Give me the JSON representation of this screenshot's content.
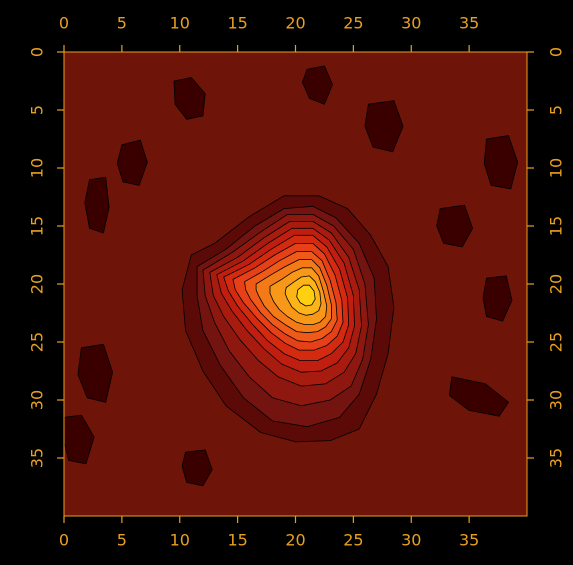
{
  "chart_data": {
    "type": "heatmap",
    "title": "",
    "xlabel": "",
    "ylabel": "",
    "xlim": [
      0,
      40
    ],
    "ylim": [
      0,
      40
    ],
    "y_inverted": true,
    "x_ticks": [
      0,
      5,
      10,
      15,
      20,
      25,
      30,
      35
    ],
    "y_ticks": [
      0,
      5,
      10,
      15,
      20,
      25,
      30,
      35
    ],
    "tick_labels": {
      "x": [
        "0",
        "5",
        "10",
        "15",
        "20",
        "25",
        "30",
        "35"
      ],
      "y": [
        "0",
        "5",
        "10",
        "15",
        "20",
        "25",
        "30",
        "35"
      ]
    },
    "axes_on": [
      "bottom",
      "top",
      "left",
      "right"
    ],
    "grid": false,
    "legend": "none",
    "colormap": [
      "#3a0000",
      "#5c0a08",
      "#741410",
      "#8e1810",
      "#a81c10",
      "#c01e10",
      "#d42a10",
      "#e64018",
      "#f05a18",
      "#f47a18",
      "#f89818",
      "#fcb418",
      "#ffd010"
    ],
    "peak": {
      "x": 21,
      "y": 20
    },
    "colors": {
      "background": "#000000",
      "plot_background": "#6e1408",
      "axis": "#e8a020",
      "contour_line": "#000000"
    },
    "contours": [
      {
        "level": 1,
        "points": [
          [
            11,
            17.5
          ],
          [
            13,
            16.5
          ],
          [
            16,
            14.2
          ],
          [
            19,
            12.4
          ],
          [
            22,
            12.4
          ],
          [
            24.5,
            13.5
          ],
          [
            26.5,
            15.8
          ],
          [
            28,
            18.5
          ],
          [
            28.5,
            22
          ],
          [
            28,
            26
          ],
          [
            27,
            29.5
          ],
          [
            25.5,
            32.5
          ],
          [
            23,
            33.5
          ],
          [
            20,
            33.6
          ],
          [
            17,
            32.8
          ],
          [
            14,
            30.5
          ],
          [
            12,
            27.5
          ],
          [
            10.5,
            24
          ],
          [
            10.2,
            20.5
          ]
        ]
      },
      {
        "level": 2,
        "points": [
          [
            11.5,
            18.5
          ],
          [
            14,
            17
          ],
          [
            16.5,
            15
          ],
          [
            19,
            13.5
          ],
          [
            21.5,
            13.3
          ],
          [
            23.5,
            14.3
          ],
          [
            25.5,
            16.5
          ],
          [
            26.8,
            19.5
          ],
          [
            27,
            23
          ],
          [
            26.5,
            26.5
          ],
          [
            25.5,
            29.5
          ],
          [
            23.8,
            31.5
          ],
          [
            21,
            32.3
          ],
          [
            18,
            31.8
          ],
          [
            15.5,
            29.8
          ],
          [
            13.5,
            27
          ],
          [
            12,
            24
          ],
          [
            11.5,
            21
          ]
        ]
      },
      {
        "level": 3,
        "points": [
          [
            12,
            18.8
          ],
          [
            14.5,
            17.3
          ],
          [
            17,
            15.5
          ],
          [
            19.3,
            14
          ],
          [
            21.5,
            14
          ],
          [
            23.3,
            15
          ],
          [
            25,
            17
          ],
          [
            26,
            20
          ],
          [
            26.3,
            23.5
          ],
          [
            25.8,
            26.5
          ],
          [
            24.8,
            28.8
          ],
          [
            23,
            30
          ],
          [
            20.5,
            30.5
          ],
          [
            18,
            29.8
          ],
          [
            16,
            28
          ],
          [
            14.3,
            25.8
          ],
          [
            13,
            23.3
          ],
          [
            12.2,
            21
          ]
        ]
      },
      {
        "level": 4,
        "points": [
          [
            12.6,
            19
          ],
          [
            15,
            17.7
          ],
          [
            17.3,
            16
          ],
          [
            19.5,
            14.6
          ],
          [
            21.5,
            14.6
          ],
          [
            23.1,
            15.6
          ],
          [
            24.6,
            17.7
          ],
          [
            25.5,
            20.5
          ],
          [
            25.7,
            23.6
          ],
          [
            25.2,
            26
          ],
          [
            24.2,
            27.6
          ],
          [
            22.6,
            28.6
          ],
          [
            20.5,
            28.8
          ],
          [
            18.5,
            28
          ],
          [
            16.8,
            26.6
          ],
          [
            15.2,
            24.8
          ],
          [
            13.8,
            22.8
          ],
          [
            12.9,
            21
          ]
        ]
      },
      {
        "level": 5,
        "points": [
          [
            13.2,
            19.2
          ],
          [
            15.5,
            18
          ],
          [
            17.6,
            16.5
          ],
          [
            19.7,
            15.2
          ],
          [
            21.5,
            15.2
          ],
          [
            22.9,
            16.2
          ],
          [
            24.2,
            18.2
          ],
          [
            25,
            21
          ],
          [
            25.1,
            23.6
          ],
          [
            24.6,
            25.5
          ],
          [
            23.6,
            26.8
          ],
          [
            22.2,
            27.5
          ],
          [
            20.5,
            27.6
          ],
          [
            18.8,
            26.9
          ],
          [
            17.3,
            25.6
          ],
          [
            15.8,
            24
          ],
          [
            14.5,
            22.3
          ],
          [
            13.6,
            20.8
          ]
        ]
      },
      {
        "level": 6,
        "points": [
          [
            13.8,
            19.4
          ],
          [
            16,
            18.3
          ],
          [
            17.9,
            17
          ],
          [
            19.9,
            15.8
          ],
          [
            21.5,
            15.8
          ],
          [
            22.7,
            16.8
          ],
          [
            23.8,
            18.7
          ],
          [
            24.5,
            21.2
          ],
          [
            24.6,
            23.5
          ],
          [
            24.1,
            25
          ],
          [
            23.1,
            26
          ],
          [
            21.9,
            26.6
          ],
          [
            20.4,
            26.6
          ],
          [
            19,
            26
          ],
          [
            17.6,
            24.9
          ],
          [
            16.3,
            23.5
          ],
          [
            15,
            21.9
          ],
          [
            14.2,
            20.6
          ]
        ]
      },
      {
        "level": 7,
        "points": [
          [
            14.6,
            19.6
          ],
          [
            16.5,
            18.6
          ],
          [
            18.2,
            17.5
          ],
          [
            20,
            16.5
          ],
          [
            21.5,
            16.5
          ],
          [
            22.5,
            17.4
          ],
          [
            23.4,
            19.2
          ],
          [
            24,
            21.4
          ],
          [
            24.1,
            23.3
          ],
          [
            23.6,
            24.5
          ],
          [
            22.7,
            25.3
          ],
          [
            21.6,
            25.7
          ],
          [
            20.3,
            25.7
          ],
          [
            19.1,
            25.1
          ],
          [
            17.9,
            24.2
          ],
          [
            16.7,
            23
          ],
          [
            15.5,
            21.6
          ],
          [
            14.8,
            20.5
          ]
        ]
      },
      {
        "level": 8,
        "points": [
          [
            15.6,
            19.8
          ],
          [
            17.2,
            18.9
          ],
          [
            18.6,
            18
          ],
          [
            20.1,
            17.2
          ],
          [
            21.4,
            17.2
          ],
          [
            22.3,
            18
          ],
          [
            23,
            19.7
          ],
          [
            23.5,
            21.6
          ],
          [
            23.6,
            23.1
          ],
          [
            23.1,
            24.1
          ],
          [
            22.3,
            24.7
          ],
          [
            21.3,
            25
          ],
          [
            20.2,
            24.9
          ],
          [
            19.1,
            24.3
          ],
          [
            18,
            23.5
          ],
          [
            17,
            22.5
          ],
          [
            16.1,
            21.3
          ],
          [
            15.7,
            20.5
          ]
        ]
      },
      {
        "level": 9,
        "points": [
          [
            16.6,
            20
          ],
          [
            17.9,
            19.2
          ],
          [
            19.1,
            18.5
          ],
          [
            20.3,
            17.9
          ],
          [
            21.4,
            17.9
          ],
          [
            22.1,
            18.6
          ],
          [
            22.7,
            20.1
          ],
          [
            23.1,
            21.8
          ],
          [
            23.1,
            23
          ],
          [
            22.6,
            23.7
          ],
          [
            21.9,
            24.1
          ],
          [
            21,
            24.2
          ],
          [
            20.1,
            24.1
          ],
          [
            19.1,
            23.5
          ],
          [
            18.1,
            22.8
          ],
          [
            17.3,
            21.9
          ],
          [
            16.8,
            21
          ],
          [
            16.6,
            20.5
          ]
        ]
      },
      {
        "level": 10,
        "points": [
          [
            17.8,
            20.2
          ],
          [
            18.8,
            19.6
          ],
          [
            19.7,
            19
          ],
          [
            20.6,
            18.6
          ],
          [
            21.4,
            18.6
          ],
          [
            22,
            19.3
          ],
          [
            22.4,
            20.6
          ],
          [
            22.7,
            21.9
          ],
          [
            22.6,
            22.8
          ],
          [
            22.1,
            23.3
          ],
          [
            21.5,
            23.5
          ],
          [
            20.8,
            23.5
          ],
          [
            20.1,
            23.3
          ],
          [
            19.3,
            22.8
          ],
          [
            18.6,
            22.2
          ],
          [
            18.1,
            21.5
          ],
          [
            17.8,
            20.8
          ]
        ]
      },
      {
        "level": 11,
        "points": [
          [
            19.2,
            20.3
          ],
          [
            19.9,
            19.8
          ],
          [
            20.5,
            19.4
          ],
          [
            21.2,
            19.3
          ],
          [
            21.7,
            19.8
          ],
          [
            22.1,
            20.7
          ],
          [
            22.2,
            21.7
          ],
          [
            22,
            22.3
          ],
          [
            21.5,
            22.6
          ],
          [
            20.9,
            22.7
          ],
          [
            20.3,
            22.5
          ],
          [
            19.7,
            22
          ],
          [
            19.3,
            21.3
          ],
          [
            19.1,
            20.8
          ]
        ]
      },
      {
        "level": 12,
        "points": [
          [
            20.2,
            20.5
          ],
          [
            20.7,
            20.1
          ],
          [
            21.2,
            20.1
          ],
          [
            21.6,
            20.6
          ],
          [
            21.7,
            21.3
          ],
          [
            21.4,
            21.8
          ],
          [
            20.9,
            21.9
          ],
          [
            20.4,
            21.6
          ],
          [
            20.1,
            21.1
          ]
        ]
      }
    ],
    "dark_patches": [
      {
        "level": 0,
        "points": [
          [
            21,
            1.5
          ],
          [
            22.5,
            1.2
          ],
          [
            23.2,
            2.8
          ],
          [
            22.5,
            4.5
          ],
          [
            21.2,
            4
          ],
          [
            20.6,
            2.6
          ]
        ]
      },
      {
        "level": 0,
        "points": [
          [
            9.5,
            2.5
          ],
          [
            11,
            2.2
          ],
          [
            12.2,
            3.6
          ],
          [
            12,
            5.5
          ],
          [
            10.6,
            5.8
          ],
          [
            9.6,
            4.5
          ]
        ]
      },
      {
        "level": 0,
        "points": [
          [
            5,
            8
          ],
          [
            6.6,
            7.6
          ],
          [
            7.2,
            9.5
          ],
          [
            6.5,
            11.5
          ],
          [
            5.1,
            11.2
          ],
          [
            4.6,
            9.6
          ]
        ]
      },
      {
        "level": 0,
        "points": [
          [
            2.2,
            11
          ],
          [
            3.6,
            10.8
          ],
          [
            3.9,
            13.4
          ],
          [
            3.4,
            15.6
          ],
          [
            2.2,
            15.2
          ],
          [
            1.8,
            13
          ]
        ]
      },
      {
        "level": 0,
        "points": [
          [
            26.3,
            4.5
          ],
          [
            28.5,
            4.2
          ],
          [
            29.3,
            6.4
          ],
          [
            28.4,
            8.6
          ],
          [
            26.7,
            8.2
          ],
          [
            26,
            6.4
          ]
        ]
      },
      {
        "level": 0,
        "points": [
          [
            36.5,
            7.5
          ],
          [
            38.4,
            7.2
          ],
          [
            39.2,
            9.5
          ],
          [
            38.6,
            11.8
          ],
          [
            36.9,
            11.5
          ],
          [
            36.3,
            9.6
          ]
        ]
      },
      {
        "level": 0,
        "points": [
          [
            32.5,
            13.5
          ],
          [
            34.6,
            13.2
          ],
          [
            35.3,
            15.2
          ],
          [
            34.4,
            16.8
          ],
          [
            32.8,
            16.5
          ],
          [
            32.2,
            15
          ]
        ]
      },
      {
        "level": 0,
        "points": [
          [
            36.5,
            19.5
          ],
          [
            38.2,
            19.3
          ],
          [
            38.7,
            21.4
          ],
          [
            37.9,
            23.2
          ],
          [
            36.5,
            22.8
          ],
          [
            36.2,
            21.2
          ]
        ]
      },
      {
        "level": 0,
        "points": [
          [
            1.5,
            25.5
          ],
          [
            3.4,
            25.2
          ],
          [
            4.2,
            27.6
          ],
          [
            3.6,
            30.2
          ],
          [
            2,
            29.8
          ],
          [
            1.2,
            27.8
          ]
        ]
      },
      {
        "level": 0,
        "points": [
          [
            33.5,
            28
          ],
          [
            36.4,
            28.6
          ],
          [
            38.4,
            30.2
          ],
          [
            37.6,
            31.4
          ],
          [
            35,
            30.9
          ],
          [
            33.3,
            29.6
          ]
        ]
      },
      {
        "level": 0,
        "points": [
          [
            10.5,
            34.5
          ],
          [
            12.2,
            34.3
          ],
          [
            12.8,
            36
          ],
          [
            12,
            37.4
          ],
          [
            10.6,
            37.1
          ],
          [
            10.2,
            35.7
          ]
        ]
      },
      {
        "level": 0,
        "points": [
          [
            0,
            31.5
          ],
          [
            1.5,
            31.3
          ],
          [
            2.6,
            33.2
          ],
          [
            1.9,
            35.5
          ],
          [
            0.4,
            35.2
          ],
          [
            0,
            33.6
          ]
        ]
      }
    ]
  }
}
